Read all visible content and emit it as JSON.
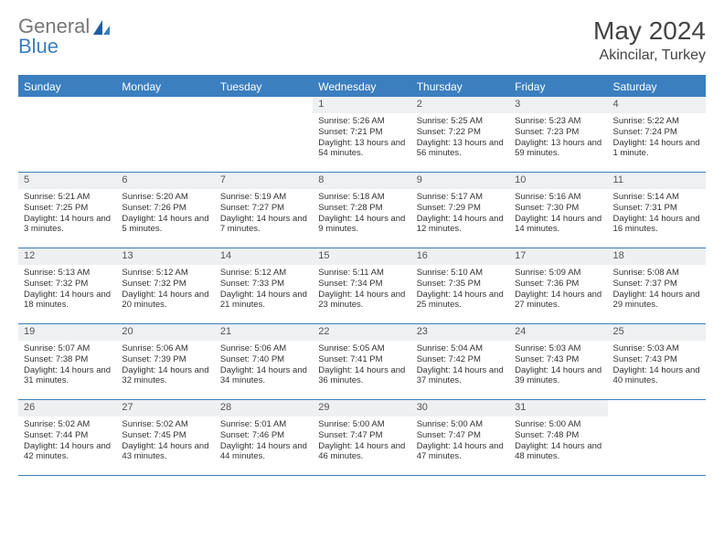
{
  "brand": {
    "top": "General",
    "bottom": "Blue"
  },
  "title": {
    "month": "May 2024",
    "location": "Akincilar, Turkey"
  },
  "colors": {
    "accent": "#3b7fbf",
    "headerbg": "#3b7fbf",
    "daynum_bg": "#eef0f2",
    "text": "#333333"
  },
  "daynames": [
    "Sunday",
    "Monday",
    "Tuesday",
    "Wednesday",
    "Thursday",
    "Friday",
    "Saturday"
  ],
  "weeks": [
    [
      {
        "n": "",
        "sr": "",
        "ss": "",
        "dl": ""
      },
      {
        "n": "",
        "sr": "",
        "ss": "",
        "dl": ""
      },
      {
        "n": "",
        "sr": "",
        "ss": "",
        "dl": ""
      },
      {
        "n": "1",
        "sr": "Sunrise: 5:26 AM",
        "ss": "Sunset: 7:21 PM",
        "dl": "Daylight: 13 hours and 54 minutes."
      },
      {
        "n": "2",
        "sr": "Sunrise: 5:25 AM",
        "ss": "Sunset: 7:22 PM",
        "dl": "Daylight: 13 hours and 56 minutes."
      },
      {
        "n": "3",
        "sr": "Sunrise: 5:23 AM",
        "ss": "Sunset: 7:23 PM",
        "dl": "Daylight: 13 hours and 59 minutes."
      },
      {
        "n": "4",
        "sr": "Sunrise: 5:22 AM",
        "ss": "Sunset: 7:24 PM",
        "dl": "Daylight: 14 hours and 1 minute."
      }
    ],
    [
      {
        "n": "5",
        "sr": "Sunrise: 5:21 AM",
        "ss": "Sunset: 7:25 PM",
        "dl": "Daylight: 14 hours and 3 minutes."
      },
      {
        "n": "6",
        "sr": "Sunrise: 5:20 AM",
        "ss": "Sunset: 7:26 PM",
        "dl": "Daylight: 14 hours and 5 minutes."
      },
      {
        "n": "7",
        "sr": "Sunrise: 5:19 AM",
        "ss": "Sunset: 7:27 PM",
        "dl": "Daylight: 14 hours and 7 minutes."
      },
      {
        "n": "8",
        "sr": "Sunrise: 5:18 AM",
        "ss": "Sunset: 7:28 PM",
        "dl": "Daylight: 14 hours and 9 minutes."
      },
      {
        "n": "9",
        "sr": "Sunrise: 5:17 AM",
        "ss": "Sunset: 7:29 PM",
        "dl": "Daylight: 14 hours and 12 minutes."
      },
      {
        "n": "10",
        "sr": "Sunrise: 5:16 AM",
        "ss": "Sunset: 7:30 PM",
        "dl": "Daylight: 14 hours and 14 minutes."
      },
      {
        "n": "11",
        "sr": "Sunrise: 5:14 AM",
        "ss": "Sunset: 7:31 PM",
        "dl": "Daylight: 14 hours and 16 minutes."
      }
    ],
    [
      {
        "n": "12",
        "sr": "Sunrise: 5:13 AM",
        "ss": "Sunset: 7:32 PM",
        "dl": "Daylight: 14 hours and 18 minutes."
      },
      {
        "n": "13",
        "sr": "Sunrise: 5:12 AM",
        "ss": "Sunset: 7:32 PM",
        "dl": "Daylight: 14 hours and 20 minutes."
      },
      {
        "n": "14",
        "sr": "Sunrise: 5:12 AM",
        "ss": "Sunset: 7:33 PM",
        "dl": "Daylight: 14 hours and 21 minutes."
      },
      {
        "n": "15",
        "sr": "Sunrise: 5:11 AM",
        "ss": "Sunset: 7:34 PM",
        "dl": "Daylight: 14 hours and 23 minutes."
      },
      {
        "n": "16",
        "sr": "Sunrise: 5:10 AM",
        "ss": "Sunset: 7:35 PM",
        "dl": "Daylight: 14 hours and 25 minutes."
      },
      {
        "n": "17",
        "sr": "Sunrise: 5:09 AM",
        "ss": "Sunset: 7:36 PM",
        "dl": "Daylight: 14 hours and 27 minutes."
      },
      {
        "n": "18",
        "sr": "Sunrise: 5:08 AM",
        "ss": "Sunset: 7:37 PM",
        "dl": "Daylight: 14 hours and 29 minutes."
      }
    ],
    [
      {
        "n": "19",
        "sr": "Sunrise: 5:07 AM",
        "ss": "Sunset: 7:38 PM",
        "dl": "Daylight: 14 hours and 31 minutes."
      },
      {
        "n": "20",
        "sr": "Sunrise: 5:06 AM",
        "ss": "Sunset: 7:39 PM",
        "dl": "Daylight: 14 hours and 32 minutes."
      },
      {
        "n": "21",
        "sr": "Sunrise: 5:06 AM",
        "ss": "Sunset: 7:40 PM",
        "dl": "Daylight: 14 hours and 34 minutes."
      },
      {
        "n": "22",
        "sr": "Sunrise: 5:05 AM",
        "ss": "Sunset: 7:41 PM",
        "dl": "Daylight: 14 hours and 36 minutes."
      },
      {
        "n": "23",
        "sr": "Sunrise: 5:04 AM",
        "ss": "Sunset: 7:42 PM",
        "dl": "Daylight: 14 hours and 37 minutes."
      },
      {
        "n": "24",
        "sr": "Sunrise: 5:03 AM",
        "ss": "Sunset: 7:43 PM",
        "dl": "Daylight: 14 hours and 39 minutes."
      },
      {
        "n": "25",
        "sr": "Sunrise: 5:03 AM",
        "ss": "Sunset: 7:43 PM",
        "dl": "Daylight: 14 hours and 40 minutes."
      }
    ],
    [
      {
        "n": "26",
        "sr": "Sunrise: 5:02 AM",
        "ss": "Sunset: 7:44 PM",
        "dl": "Daylight: 14 hours and 42 minutes."
      },
      {
        "n": "27",
        "sr": "Sunrise: 5:02 AM",
        "ss": "Sunset: 7:45 PM",
        "dl": "Daylight: 14 hours and 43 minutes."
      },
      {
        "n": "28",
        "sr": "Sunrise: 5:01 AM",
        "ss": "Sunset: 7:46 PM",
        "dl": "Daylight: 14 hours and 44 minutes."
      },
      {
        "n": "29",
        "sr": "Sunrise: 5:00 AM",
        "ss": "Sunset: 7:47 PM",
        "dl": "Daylight: 14 hours and 46 minutes."
      },
      {
        "n": "30",
        "sr": "Sunrise: 5:00 AM",
        "ss": "Sunset: 7:47 PM",
        "dl": "Daylight: 14 hours and 47 minutes."
      },
      {
        "n": "31",
        "sr": "Sunrise: 5:00 AM",
        "ss": "Sunset: 7:48 PM",
        "dl": "Daylight: 14 hours and 48 minutes."
      },
      {
        "n": "",
        "sr": "",
        "ss": "",
        "dl": ""
      }
    ]
  ]
}
